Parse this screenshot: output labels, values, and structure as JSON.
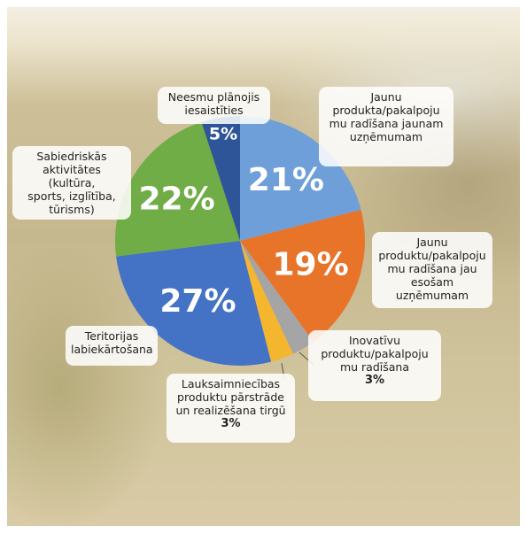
{
  "chart_data": {
    "type": "pie",
    "categories": [
      "Jaunu\nprodukta/pakalpoju\nmu radīšana jaunam\nuzņēmumam",
      "Jaunu\nproduktu/pakalpoju\nmu radīšana jau\nesošam  uzņēmumam",
      "Inovatīvu\nproduktu/pakalpoju\nmu radīšana",
      "Lauksaimniecības\nproduktu pārstrāde\nun realizēšana tirgū",
      "Teritorijas\nlabiekārtošana",
      "Sabiedriskās\naktivitātes (kultūra,\nsports, izglītība,\ntūrisms)",
      "Neesmu plānojis\niesaistīties"
    ],
    "values": [
      21,
      19,
      3,
      3,
      27,
      22,
      5
    ],
    "value_labels": [
      "21%",
      "19%",
      "3%",
      "3%",
      "27%",
      "22%",
      "5%"
    ],
    "colors": [
      "#6f9fd8",
      "#e8742a",
      "#a5a5a5",
      "#f4b52f",
      "#4472c4",
      "#70ad47",
      "#2e5597"
    ]
  }
}
